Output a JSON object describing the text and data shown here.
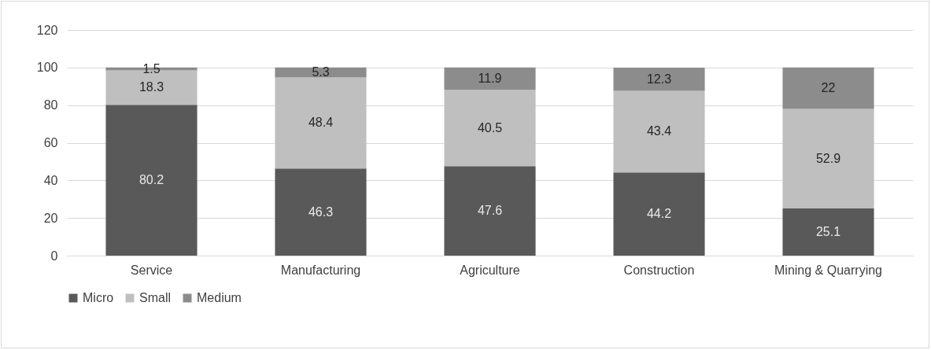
{
  "chart_data": {
    "type": "bar",
    "stacked": true,
    "categories": [
      "Service",
      "Manufacturing",
      "Agriculture",
      "Construction",
      "Mining & Quarrying"
    ],
    "series": [
      {
        "name": "Micro",
        "color": "#595959",
        "values": [
          80.2,
          46.3,
          47.6,
          44.2,
          25.1
        ]
      },
      {
        "name": "Small",
        "color": "#bfbfbf",
        "values": [
          18.3,
          48.4,
          40.5,
          43.4,
          52.9
        ]
      },
      {
        "name": "Medium",
        "color": "#8c8c8c",
        "values": [
          1.5,
          5.3,
          11.9,
          12.3,
          22
        ]
      }
    ],
    "ylim": [
      0,
      120
    ],
    "yticks": [
      0,
      20,
      40,
      60,
      80,
      100,
      120
    ],
    "grid": "y",
    "legend": "bottom",
    "data_labels": true
  }
}
